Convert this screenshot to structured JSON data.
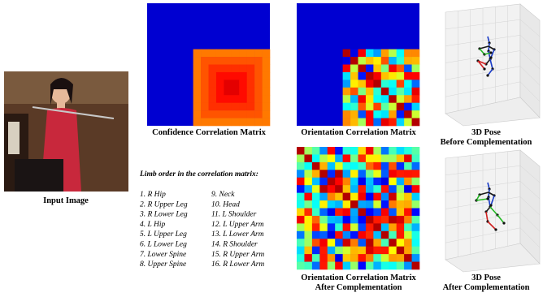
{
  "input_image": {
    "caption": "Input Image"
  },
  "confidence_matrix": {
    "caption": "Confidence Correlation Matrix"
  },
  "orientation_matrix": {
    "caption": "Orientation Correlation Matrix"
  },
  "pose_before": {
    "caption_lines": [
      "3D Pose",
      "Before Complementation"
    ]
  },
  "limb_order": {
    "title": "Limb order in the correlation matrix:",
    "items": [
      "1. R Hip",
      "2. R Upper Leg",
      "3. R Lower Leg",
      "4. L Hip",
      "5. L Upper Leg",
      "6. L Lower Leg",
      "7. Lower Spine",
      "8. Upper Spine",
      "9. Neck",
      "10. Head",
      "11. L Shoulder",
      "12. L Upper Arm",
      "13. L Lower Arm",
      "14. R Shoulder",
      "15. R Upper Arm",
      "16. R Lower Arm"
    ]
  },
  "orientation_after": {
    "caption_lines": [
      "Orientation Correlation Matrix",
      "After Complementation"
    ]
  },
  "pose_after": {
    "caption_lines": [
      "3D Pose",
      "After Complementation"
    ]
  }
}
